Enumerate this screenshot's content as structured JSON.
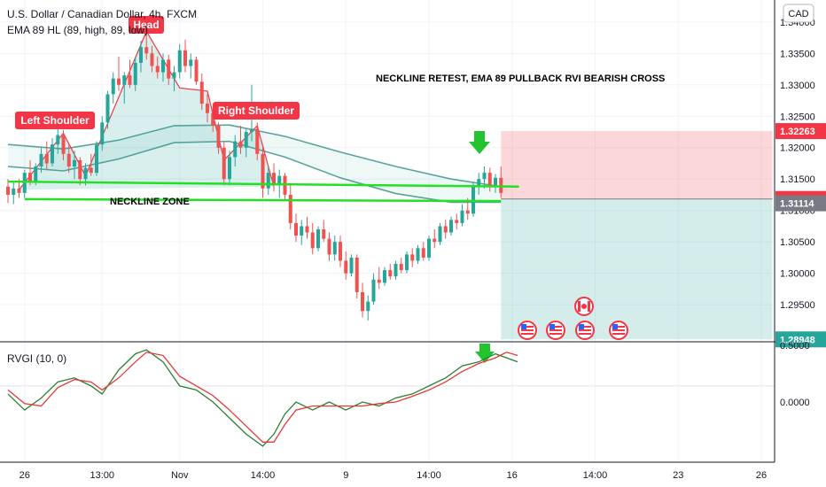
{
  "chart_data": {
    "type": "candlestick",
    "legend": {
      "line1": "U.S. Dollar / Canadian Dollar, 4h, FXCM",
      "line2": "EMA 89 HL (89, high, 89, low)"
    },
    "currency_label": "CAD",
    "price_axis": {
      "ylim": [
        1.2891,
        1.3435
      ],
      "ticks": [
        "1.34000",
        "1.33500",
        "1.33000",
        "1.32500",
        "1.32000",
        "1.31500",
        "1.31000",
        "1.30500",
        "1.30000",
        "1.29500"
      ],
      "tick_values": [
        1.34,
        1.335,
        1.33,
        1.325,
        1.32,
        1.315,
        1.31,
        1.305,
        1.3,
        1.295
      ]
    },
    "price_tags": [
      {
        "label": "1.32263",
        "value": 1.32263,
        "color": "#f23645"
      },
      {
        "label": "1.31183",
        "value": 1.31183,
        "color": "#f23645"
      },
      {
        "label": "1.31114",
        "value": 1.31114,
        "color": "#787b86"
      },
      {
        "label": "1.28948",
        "value": 1.28948,
        "color": "#26a69a"
      }
    ],
    "time_axis": {
      "labels": [
        "26",
        "13:00",
        "Nov",
        "14:00",
        "9",
        "14:00",
        "16",
        "14:00",
        "23",
        "26"
      ],
      "positions": [
        3,
        17,
        31,
        46,
        61,
        76,
        91,
        106,
        121,
        136
      ]
    },
    "annotations": {
      "head": "Head",
      "left_shoulder": "Left Shoulder",
      "right_shoulder": "Right Shoulder",
      "neckline_zone": "NECKLINE ZONE",
      "setup": "NECKLINE RETEST, EMA 89 PULLBACK RVI BEARISH CROSS"
    },
    "trade": {
      "entry": 1.31183,
      "stop": 1.32263,
      "target": 1.28948,
      "start_index": 89,
      "end_index": 138
    },
    "neckline": {
      "upper": [
        {
          "i": 0,
          "v": 1.3146
        },
        {
          "i": 90,
          "v": 1.3138
        }
      ],
      "lower": [
        {
          "i": 3,
          "v": 1.3118
        },
        {
          "i": 89,
          "v": 1.3115
        }
      ]
    },
    "head_shoulders_path": [
      {
        "i": 2,
        "v": 1.3133
      },
      {
        "i": 10,
        "v": 1.3223
      },
      {
        "i": 14,
        "v": 1.3155
      },
      {
        "i": 25,
        "v": 1.3385
      },
      {
        "i": 31,
        "v": 1.3295
      },
      {
        "i": 36,
        "v": 1.329
      },
      {
        "i": 39,
        "v": 1.318
      },
      {
        "i": 45,
        "v": 1.3235
      },
      {
        "i": 48,
        "v": 1.3138
      }
    ],
    "ema_high": [
      [
        0,
        1.3205
      ],
      [
        10,
        1.3198
      ],
      [
        20,
        1.3212
      ],
      [
        30,
        1.3235
      ],
      [
        40,
        1.3236
      ],
      [
        50,
        1.3218
      ],
      [
        60,
        1.3193
      ],
      [
        70,
        1.317
      ],
      [
        80,
        1.315
      ],
      [
        89,
        1.3138
      ]
    ],
    "ema_low": [
      [
        0,
        1.317
      ],
      [
        10,
        1.3163
      ],
      [
        20,
        1.3182
      ],
      [
        30,
        1.3208
      ],
      [
        40,
        1.321
      ],
      [
        50,
        1.3185
      ],
      [
        60,
        1.3152
      ],
      [
        70,
        1.3127
      ],
      [
        80,
        1.3113
      ],
      [
        89,
        1.3113
      ]
    ],
    "candles": [
      [
        1.3138,
        1.315,
        1.3112,
        1.3125
      ],
      [
        1.3125,
        1.3145,
        1.311,
        1.3135
      ],
      [
        1.3135,
        1.315,
        1.312,
        1.3128
      ],
      [
        1.3128,
        1.3165,
        1.312,
        1.316
      ],
      [
        1.316,
        1.318,
        1.314,
        1.3145
      ],
      [
        1.3145,
        1.3175,
        1.314,
        1.317
      ],
      [
        1.317,
        1.32,
        1.316,
        1.319
      ],
      [
        1.319,
        1.321,
        1.3165,
        1.3175
      ],
      [
        1.3175,
        1.3215,
        1.317,
        1.3205
      ],
      [
        1.3205,
        1.323,
        1.319,
        1.322
      ],
      [
        1.322,
        1.3228,
        1.318,
        1.319
      ],
      [
        1.319,
        1.3205,
        1.316,
        1.317
      ],
      [
        1.317,
        1.3195,
        1.315,
        1.318
      ],
      [
        1.318,
        1.3185,
        1.314,
        1.315
      ],
      [
        1.315,
        1.3175,
        1.314,
        1.3168
      ],
      [
        1.3168,
        1.319,
        1.3155,
        1.316
      ],
      [
        1.316,
        1.321,
        1.3155,
        1.3205
      ],
      [
        1.3205,
        1.325,
        1.3195,
        1.324
      ],
      [
        1.324,
        1.329,
        1.323,
        1.3285
      ],
      [
        1.3285,
        1.332,
        1.327,
        1.331
      ],
      [
        1.331,
        1.3345,
        1.329,
        1.33
      ],
      [
        1.33,
        1.332,
        1.327,
        1.3315
      ],
      [
        1.3315,
        1.334,
        1.3295,
        1.33
      ],
      [
        1.33,
        1.3345,
        1.329,
        1.3335
      ],
      [
        1.3335,
        1.337,
        1.332,
        1.336
      ],
      [
        1.336,
        1.339,
        1.334,
        1.335
      ],
      [
        1.335,
        1.3362,
        1.332,
        1.333
      ],
      [
        1.333,
        1.3345,
        1.331,
        1.332
      ],
      [
        1.332,
        1.335,
        1.3305,
        1.334
      ],
      [
        1.334,
        1.3348,
        1.33,
        1.331
      ],
      [
        1.331,
        1.333,
        1.329,
        1.332
      ],
      [
        1.332,
        1.3365,
        1.331,
        1.3355
      ],
      [
        1.3355,
        1.3372,
        1.332,
        1.333
      ],
      [
        1.333,
        1.335,
        1.331,
        1.334
      ],
      [
        1.334,
        1.3345,
        1.33,
        1.3305
      ],
      [
        1.3305,
        1.3318,
        1.326,
        1.327
      ],
      [
        1.327,
        1.3285,
        1.324,
        1.3255
      ],
      [
        1.3255,
        1.3265,
        1.3225,
        1.3235
      ],
      [
        1.3235,
        1.324,
        1.319,
        1.32
      ],
      [
        1.32,
        1.321,
        1.314,
        1.315
      ],
      [
        1.315,
        1.3195,
        1.314,
        1.3185
      ],
      [
        1.3185,
        1.322,
        1.317,
        1.321
      ],
      [
        1.321,
        1.3235,
        1.319,
        1.32
      ],
      [
        1.32,
        1.323,
        1.3185,
        1.3225
      ],
      [
        1.3225,
        1.33,
        1.321,
        1.323
      ],
      [
        1.323,
        1.324,
        1.318,
        1.319
      ],
      [
        1.319,
        1.32,
        1.312,
        1.3135
      ],
      [
        1.3135,
        1.317,
        1.3125,
        1.316
      ],
      [
        1.316,
        1.3175,
        1.313,
        1.314
      ],
      [
        1.314,
        1.3165,
        1.312,
        1.3155
      ],
      [
        1.3155,
        1.316,
        1.3115,
        1.3125
      ],
      [
        1.3125,
        1.314,
        1.307,
        1.308
      ],
      [
        1.308,
        1.3095,
        1.305,
        1.306
      ],
      [
        1.306,
        1.3085,
        1.3045,
        1.3075
      ],
      [
        1.3075,
        1.309,
        1.3055,
        1.3065
      ],
      [
        1.3065,
        1.308,
        1.303,
        1.304
      ],
      [
        1.304,
        1.3075,
        1.3035,
        1.307
      ],
      [
        1.307,
        1.3085,
        1.305,
        1.3055
      ],
      [
        1.3055,
        1.3065,
        1.302,
        1.303
      ],
      [
        1.303,
        1.306,
        1.302,
        1.305
      ],
      [
        1.305,
        1.306,
        1.301,
        1.302
      ],
      [
        1.302,
        1.3035,
        1.299,
        1.3
      ],
      [
        1.3,
        1.303,
        1.2995,
        1.3025
      ],
      [
        1.3025,
        1.303,
        1.296,
        1.297
      ],
      [
        1.297,
        1.2985,
        1.293,
        1.294
      ],
      [
        1.294,
        1.2965,
        1.2925,
        1.2955
      ],
      [
        1.2955,
        1.3,
        1.295,
        1.299
      ],
      [
        1.299,
        1.301,
        1.2975,
        1.2985
      ],
      [
        1.2985,
        1.301,
        1.298,
        1.3005
      ],
      [
        1.3005,
        1.3015,
        1.299,
        1.2995
      ],
      [
        1.2995,
        1.302,
        1.299,
        1.3015
      ],
      [
        1.3015,
        1.3025,
        1.3,
        1.3005
      ],
      [
        1.3005,
        1.3035,
        1.3,
        1.303
      ],
      [
        1.303,
        1.304,
        1.301,
        1.302
      ],
      [
        1.302,
        1.3045,
        1.3015,
        1.304
      ],
      [
        1.304,
        1.305,
        1.302,
        1.3025
      ],
      [
        1.3025,
        1.306,
        1.302,
        1.3055
      ],
      [
        1.3055,
        1.307,
        1.304,
        1.305
      ],
      [
        1.305,
        1.308,
        1.3045,
        1.3075
      ],
      [
        1.3075,
        1.3085,
        1.3055,
        1.3065
      ],
      [
        1.3065,
        1.309,
        1.306,
        1.3085
      ],
      [
        1.3085,
        1.3095,
        1.307,
        1.308
      ],
      [
        1.308,
        1.311,
        1.3075,
        1.31
      ],
      [
        1.31,
        1.312,
        1.3085,
        1.3095
      ],
      [
        1.3095,
        1.3145,
        1.309,
        1.314
      ],
      [
        1.314,
        1.316,
        1.3125,
        1.315
      ],
      [
        1.315,
        1.317,
        1.3135,
        1.316
      ],
      [
        1.316,
        1.3168,
        1.313,
        1.314
      ],
      [
        1.314,
        1.3158,
        1.3128,
        1.3152
      ],
      [
        1.3152,
        1.317,
        1.312,
        1.3128
      ]
    ],
    "rvgi_pane": {
      "label": "RVGI (10, 0)",
      "tick_label": "0.0000",
      "tick_top_label": "0.5000",
      "ylim": [
        -0.95,
        0.55
      ],
      "rvgi": [
        [
          0,
          -0.1
        ],
        [
          3,
          -0.3
        ],
        [
          6,
          -0.15
        ],
        [
          9,
          0.05
        ],
        [
          12,
          0.1
        ],
        [
          15,
          0.0
        ],
        [
          17,
          -0.1
        ],
        [
          20,
          0.2
        ],
        [
          23,
          0.4
        ],
        [
          25,
          0.45
        ],
        [
          28,
          0.3
        ],
        [
          31,
          0.0
        ],
        [
          34,
          -0.05
        ],
        [
          37,
          -0.2
        ],
        [
          40,
          -0.4
        ],
        [
          43,
          -0.6
        ],
        [
          46,
          -0.75
        ],
        [
          48,
          -0.6
        ],
        [
          50,
          -0.35
        ],
        [
          52,
          -0.2
        ],
        [
          55,
          -0.3
        ],
        [
          58,
          -0.2
        ],
        [
          61,
          -0.3
        ],
        [
          64,
          -0.2
        ],
        [
          67,
          -0.25
        ],
        [
          70,
          -0.15
        ],
        [
          73,
          -0.1
        ],
        [
          76,
          0.0
        ],
        [
          79,
          0.1
        ],
        [
          82,
          0.25
        ],
        [
          85,
          0.3
        ],
        [
          88,
          0.4
        ],
        [
          90,
          0.35
        ],
        [
          92,
          0.3
        ]
      ],
      "signal": [
        [
          0,
          -0.05
        ],
        [
          3,
          -0.22
        ],
        [
          6,
          -0.25
        ],
        [
          9,
          -0.02
        ],
        [
          12,
          0.08
        ],
        [
          15,
          0.05
        ],
        [
          17,
          -0.05
        ],
        [
          20,
          0.1
        ],
        [
          23,
          0.3
        ],
        [
          25,
          0.42
        ],
        [
          28,
          0.38
        ],
        [
          31,
          0.12
        ],
        [
          34,
          0.0
        ],
        [
          37,
          -0.12
        ],
        [
          40,
          -0.3
        ],
        [
          43,
          -0.5
        ],
        [
          46,
          -0.7
        ],
        [
          48,
          -0.7
        ],
        [
          50,
          -0.48
        ],
        [
          52,
          -0.3
        ],
        [
          55,
          -0.25
        ],
        [
          58,
          -0.25
        ],
        [
          61,
          -0.25
        ],
        [
          64,
          -0.25
        ],
        [
          67,
          -0.22
        ],
        [
          70,
          -0.2
        ],
        [
          73,
          -0.13
        ],
        [
          76,
          -0.05
        ],
        [
          79,
          0.05
        ],
        [
          82,
          0.18
        ],
        [
          85,
          0.28
        ],
        [
          88,
          0.35
        ],
        [
          90,
          0.42
        ],
        [
          92,
          0.38
        ]
      ]
    }
  }
}
